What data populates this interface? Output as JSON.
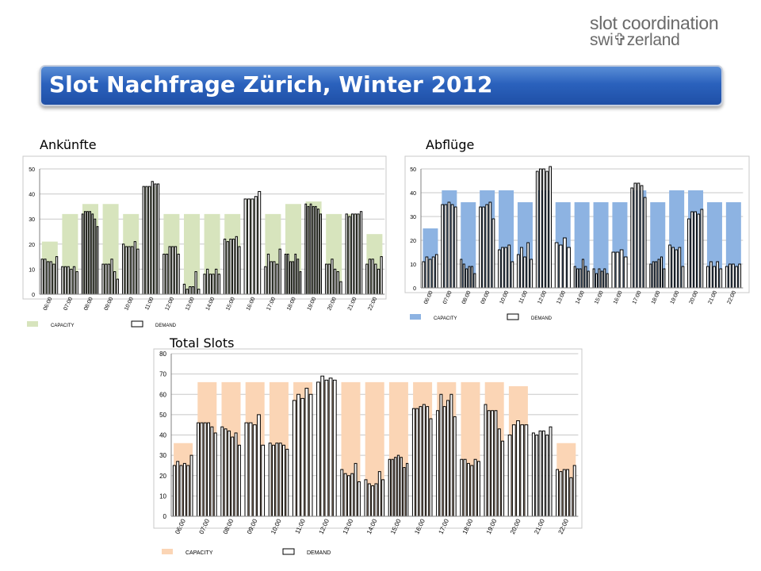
{
  "logo": {
    "line1": "slot coordination",
    "line2": "swi✞zerland"
  },
  "title": "Slot Nachfrage Zürich, Winter 2012",
  "colors": {
    "arr_cap": "#d7e4bd",
    "dep_cap": "#8db3e2",
    "tot_cap": "#fbd5b5"
  },
  "chart_data": [
    {
      "id": "arr",
      "type": "bar",
      "title": "Ankünfte",
      "xlabel": "",
      "ylabel": "",
      "ylim": [
        0,
        50
      ],
      "yticks": [
        0,
        10,
        20,
        30,
        40,
        50
      ],
      "categories": [
        "06:00",
        "07:00",
        "08:00",
        "09:00",
        "10:00",
        "11:00",
        "12:00",
        "13:00",
        "14:00",
        "15:00",
        "16:00",
        "17:00",
        "18:00",
        "19:00",
        "20:00",
        "21:00",
        "22:00"
      ],
      "legend": [
        "CAPACITY",
        "DEMAND"
      ],
      "series": [
        {
          "name": "CAPACITY",
          "values": [
            21,
            32,
            36,
            36,
            32,
            43,
            32,
            32,
            32,
            32,
            38,
            32,
            36,
            37,
            32,
            32,
            24
          ]
        },
        {
          "name": "DEMAND",
          "values": [
            [
              14,
              14,
              13,
              13,
              12,
              15
            ],
            [
              11,
              11,
              11,
              10,
              11,
              9
            ],
            [
              32,
              33,
              33,
              33,
              32,
              30,
              27
            ],
            [
              12,
              12,
              12,
              14,
              9,
              6
            ],
            [
              20,
              19,
              19,
              19,
              21,
              18
            ],
            [
              43,
              43,
              43,
              45,
              44,
              44
            ],
            [
              16,
              16,
              19,
              19,
              19,
              16
            ],
            [
              4,
              2,
              3,
              3,
              9,
              2
            ],
            [
              8,
              10,
              8,
              8,
              10,
              8
            ],
            [
              22,
              21,
              22,
              22,
              23,
              19
            ],
            [
              38,
              38,
              38,
              39,
              41
            ],
            [
              11,
              16,
              13,
              13,
              12,
              18
            ],
            [
              16,
              16,
              13,
              13,
              16,
              14,
              9
            ],
            [
              36,
              35,
              36,
              35,
              35,
              34,
              32
            ],
            [
              12,
              12,
              14,
              10,
              9,
              5
            ],
            [
              32,
              31,
              32,
              32,
              32,
              33
            ],
            [
              12,
              14,
              14,
              12,
              10,
              15
            ]
          ]
        }
      ]
    },
    {
      "id": "dep",
      "type": "bar",
      "title": "Abflüge",
      "xlabel": "",
      "ylabel": "",
      "ylim": [
        0,
        50
      ],
      "yticks": [
        0,
        10,
        20,
        30,
        40,
        50
      ],
      "categories": [
        "06:00",
        "07:00",
        "08:00",
        "09:00",
        "10:00",
        "11:00",
        "12:00",
        "13:00",
        "14:00",
        "15:00",
        "16:00",
        "17:00",
        "18:00",
        "19:00",
        "20:00",
        "21:00",
        "22:00"
      ],
      "legend": [
        "CAPACITY",
        "DEMAND"
      ],
      "series": [
        {
          "name": "CAPACITY",
          "values": [
            25,
            41,
            36,
            41,
            41,
            36,
            41,
            36,
            36,
            36,
            36,
            41,
            36,
            41,
            41,
            36,
            36
          ]
        },
        {
          "name": "DEMAND",
          "values": [
            [
              11,
              13,
              12,
              13,
              14
            ],
            [
              35,
              35,
              36,
              35,
              34
            ],
            [
              12,
              10,
              8,
              9,
              9,
              6
            ],
            [
              34,
              34,
              35,
              36,
              29
            ],
            [
              16,
              17,
              17,
              18,
              11
            ],
            [
              14,
              17,
              13,
              19,
              12
            ],
            [
              49,
              50,
              50,
              49,
              51
            ],
            [
              19,
              18,
              21,
              17
            ],
            [
              9,
              8,
              8,
              12,
              9,
              7
            ],
            [
              8,
              6,
              8,
              7,
              8,
              6
            ],
            [
              15,
              15,
              16,
              13
            ],
            [
              42,
              44,
              44,
              43,
              38
            ],
            [
              10,
              11,
              11,
              12,
              13,
              8
            ],
            [
              18,
              17,
              16,
              17,
              9
            ],
            [
              29,
              32,
              32,
              31,
              33
            ],
            [
              9,
              11,
              9,
              11,
              8
            ],
            [
              9,
              10,
              10,
              9,
              10
            ]
          ]
        }
      ]
    },
    {
      "id": "tot",
      "type": "bar",
      "title": "Total Slots",
      "xlabel": "",
      "ylabel": "",
      "ylim": [
        0,
        80
      ],
      "yticks": [
        0,
        10,
        20,
        30,
        40,
        50,
        60,
        70,
        80
      ],
      "categories": [
        "06:00",
        "07:00",
        "08:00",
        "09:00",
        "10:00",
        "11:00",
        "12:00",
        "13:00",
        "14:00",
        "15:00",
        "16:00",
        "17:00",
        "18:00",
        "19:00",
        "20:00",
        "21:00",
        "22:00"
      ],
      "legend": [
        "CAPACITY",
        "DEMAND"
      ],
      "series": [
        {
          "name": "CAPACITY",
          "values": [
            36,
            66,
            66,
            66,
            66,
            66,
            66,
            66,
            66,
            66,
            66,
            66,
            66,
            66,
            64,
            0,
            36
          ]
        },
        {
          "name": "DEMAND",
          "values": [
            [
              25,
              27,
              25,
              26,
              25,
              30
            ],
            [
              46,
              46,
              46,
              46,
              44,
              41
            ],
            [
              44,
              43,
              42,
              39,
              41,
              35
            ],
            [
              46,
              46,
              45,
              50,
              35
            ],
            [
              36,
              35,
              36,
              36,
              35,
              33
            ],
            [
              57,
              60,
              58,
              63,
              60
            ],
            [
              66,
              69,
              67,
              68,
              67
            ],
            [
              23,
              21,
              20,
              21,
              26,
              17
            ],
            [
              18,
              16,
              15,
              16,
              22,
              18
            ],
            [
              28,
              28,
              29,
              30,
              29,
              24,
              26
            ],
            [
              53,
              53,
              54,
              55,
              54,
              48
            ],
            [
              52,
              60,
              54,
              57,
              60,
              49
            ],
            [
              28,
              28,
              26,
              25,
              28,
              27
            ],
            [
              55,
              52,
              52,
              52,
              43,
              37
            ],
            [
              40,
              45,
              47,
              45,
              45
            ],
            [
              41,
              40,
              42,
              42,
              40,
              44
            ],
            [
              23,
              22,
              23,
              23,
              19,
              25
            ]
          ]
        }
      ]
    }
  ]
}
